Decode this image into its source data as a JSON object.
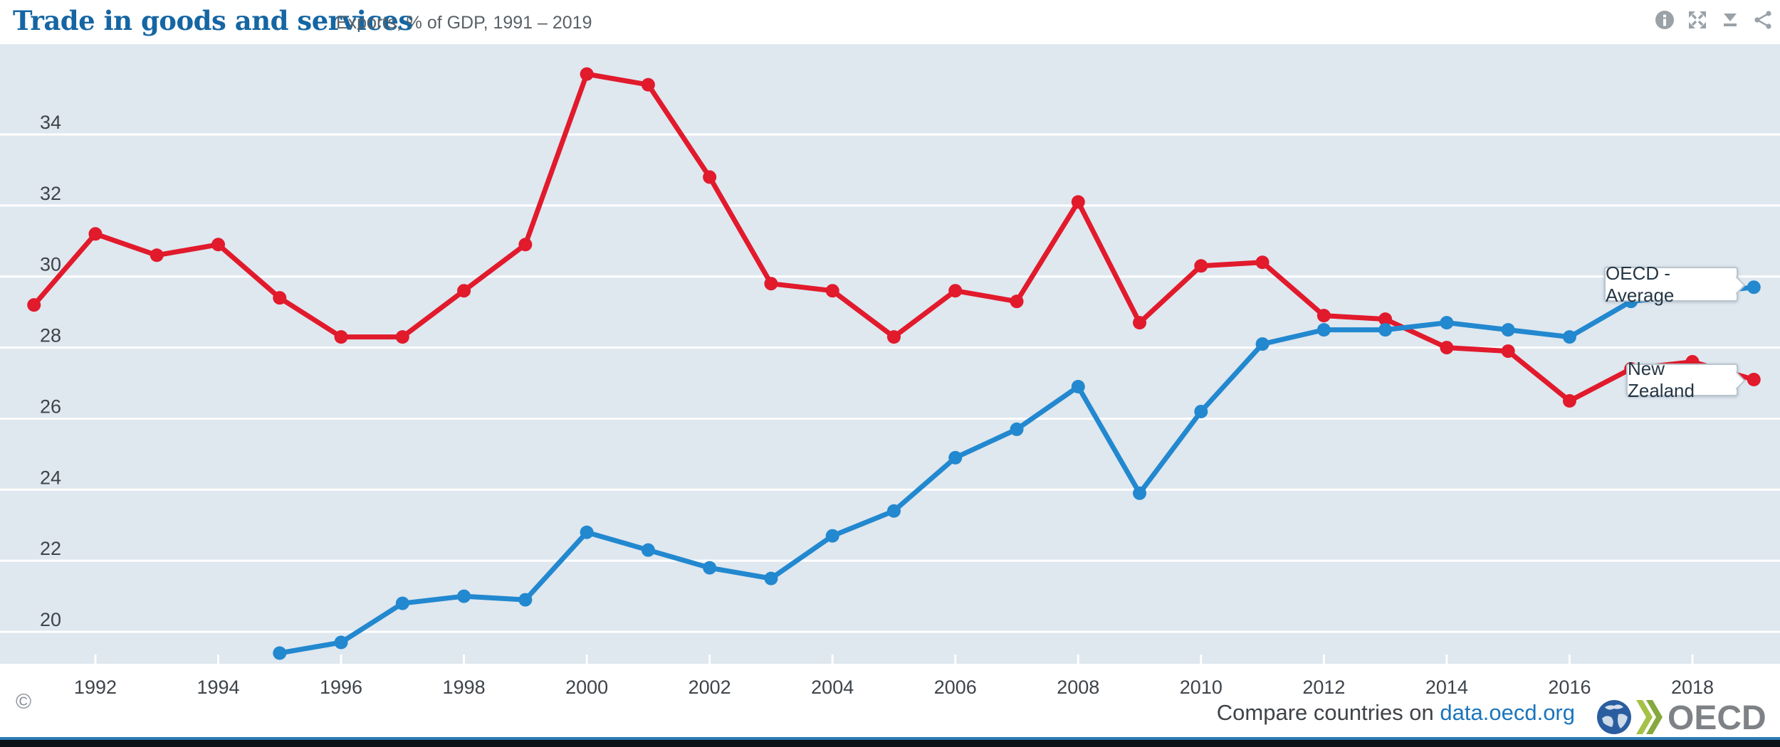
{
  "header": {
    "title": "Trade in goods and services",
    "subtitle": "Exports, % of GDP, 1991 – 2019",
    "icons": [
      {
        "name": "info-icon"
      },
      {
        "name": "fullscreen-icon"
      },
      {
        "name": "download-icon"
      },
      {
        "name": "share-icon"
      }
    ]
  },
  "chart_data": {
    "type": "line",
    "title": "Trade in goods and services",
    "subtitle": "Exports, % of GDP, 1991 – 2019",
    "x": [
      1991,
      1992,
      1993,
      1994,
      1995,
      1996,
      1997,
      1998,
      1999,
      2000,
      2001,
      2002,
      2003,
      2004,
      2005,
      2006,
      2007,
      2008,
      2009,
      2010,
      2011,
      2012,
      2013,
      2014,
      2015,
      2016,
      2017,
      2018,
      2019
    ],
    "series": [
      {
        "name": "New Zealand",
        "color": "#e11a2c",
        "values": [
          29.2,
          31.2,
          30.6,
          30.9,
          29.4,
          28.3,
          28.3,
          29.6,
          30.9,
          35.7,
          35.4,
          32.8,
          29.8,
          29.6,
          28.3,
          29.6,
          29.3,
          32.1,
          28.7,
          30.3,
          30.4,
          28.9,
          28.8,
          28.0,
          27.9,
          26.5,
          27.4,
          27.6,
          27.1
        ]
      },
      {
        "name": "OECD - Average",
        "color": "#2288cf",
        "values": [
          null,
          null,
          null,
          null,
          19.4,
          19.7,
          20.8,
          21.0,
          20.9,
          22.8,
          22.3,
          21.8,
          21.5,
          22.7,
          23.4,
          24.9,
          25.7,
          26.9,
          23.9,
          26.2,
          28.1,
          28.5,
          28.5,
          28.7,
          28.5,
          28.3,
          29.3,
          29.5,
          29.7
        ]
      }
    ],
    "xticks": [
      1992,
      1994,
      1996,
      1998,
      2000,
      2002,
      2004,
      2006,
      2008,
      2010,
      2012,
      2014,
      2016,
      2018
    ],
    "yticks": [
      20,
      22,
      24,
      26,
      28,
      30,
      32,
      34
    ],
    "ylim": [
      19.1,
      36.5
    ],
    "xlim": [
      1990.4,
      2019.4
    ],
    "grid": true,
    "legend": "end-of-line tooltips",
    "plot_bg": "#dfe7ef",
    "grid_color": "#ffffff",
    "axis_text_color": "#3e444a"
  },
  "tooltips": {
    "oecd": {
      "label": "OECD - Average"
    },
    "nz": {
      "label": "New Zealand"
    }
  },
  "footer": {
    "copyright": "©",
    "compare_text": "Compare countries on ",
    "link_text": "data.oecd.org",
    "logo_text": "OECD"
  },
  "colors": {
    "title": "#1566a3",
    "subtitle": "#5a6167",
    "icon": "#9aa1a7",
    "red_series": "#e11a2c",
    "blue_series": "#2288cf",
    "tooltip_border": "#b9c5ce",
    "tooltip_text": "#243746",
    "link": "#1b75bc",
    "bottom_bar_blue": "#2e7cb4",
    "bottom_bar_dark": "#0c1218"
  }
}
